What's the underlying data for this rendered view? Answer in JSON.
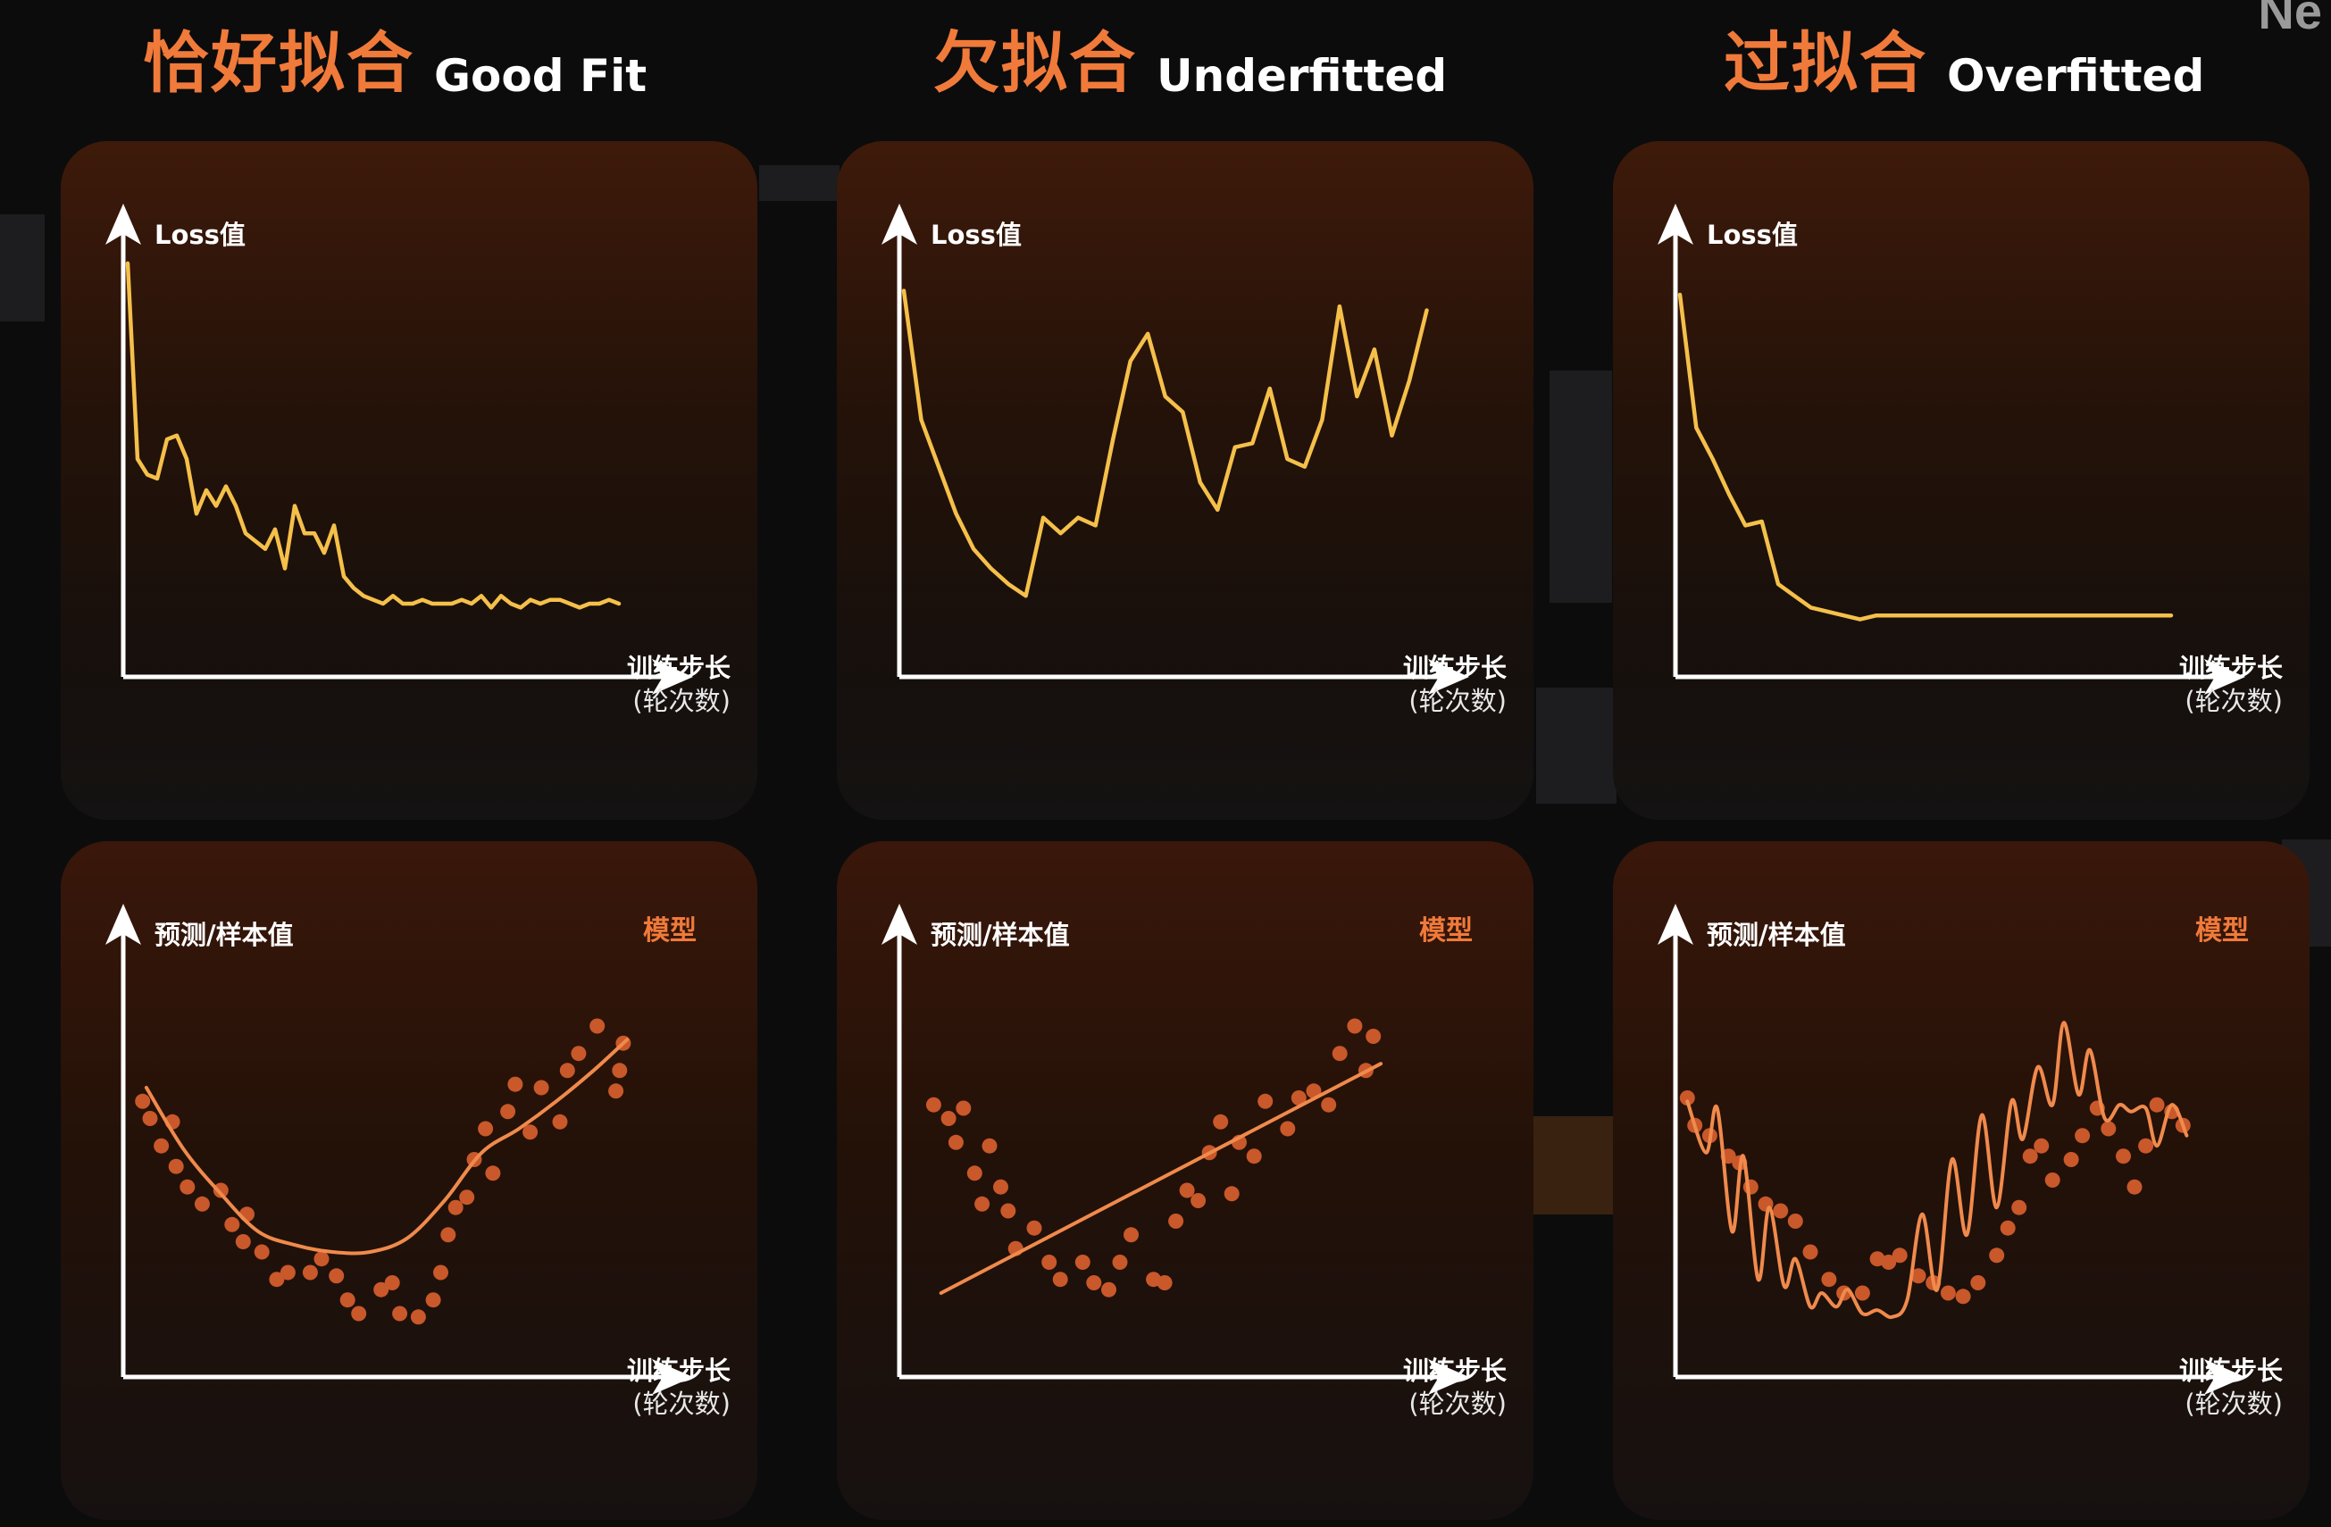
{
  "columns": [
    {
      "title_cn": "恰好拟合",
      "title_en": "Good Fit"
    },
    {
      "title_cn": "欠拟合",
      "title_en": "Underfitted"
    },
    {
      "title_cn": "过拟合",
      "title_en": "Overfitted"
    }
  ],
  "axis_labels": {
    "loss_y": "Loss值",
    "pred_y": "预测/样本值",
    "x_line1": "训练步长",
    "x_line2": "(轮次数)",
    "model": "模型"
  },
  "corner_text": "Ne",
  "colors": {
    "title_accent": "#f07a3a",
    "loss_line": "#f5c04a",
    "model_line": "#f08a4c",
    "points": "#c9582a",
    "axes": "#ffffff"
  },
  "chart_data": [
    {
      "type": "line",
      "panel": "good-fit-loss",
      "ylabel": "Loss值",
      "xlabel": "训练步长 (轮次数)",
      "x": [
        0,
        1,
        2,
        3,
        4,
        5,
        6,
        7,
        8,
        9,
        10,
        11,
        12,
        13,
        14,
        15,
        16,
        17,
        18,
        19,
        20,
        21,
        22,
        23,
        24,
        25,
        26,
        27,
        28,
        29,
        30,
        31,
        32,
        33,
        34,
        35,
        36,
        37,
        38,
        39,
        40,
        41,
        42,
        43,
        44,
        45,
        46,
        47,
        48,
        49,
        50
      ],
      "y": [
        1.0,
        0.5,
        0.46,
        0.45,
        0.55,
        0.56,
        0.5,
        0.36,
        0.42,
        0.38,
        0.43,
        0.38,
        0.31,
        0.29,
        0.27,
        0.32,
        0.22,
        0.38,
        0.31,
        0.31,
        0.26,
        0.33,
        0.2,
        0.17,
        0.15,
        0.14,
        0.13,
        0.15,
        0.13,
        0.13,
        0.14,
        0.13,
        0.13,
        0.13,
        0.14,
        0.13,
        0.15,
        0.12,
        0.15,
        0.13,
        0.12,
        0.14,
        0.13,
        0.14,
        0.14,
        0.13,
        0.12,
        0.13,
        0.13,
        0.14,
        0.13
      ],
      "xlim": [
        0,
        55
      ],
      "ylim": [
        0,
        1.05
      ]
    },
    {
      "type": "line",
      "panel": "underfitted-loss",
      "ylabel": "Loss值",
      "xlabel": "训练步长 (轮次数)",
      "x": [
        0,
        1,
        2,
        3,
        4,
        5,
        6,
        7,
        8,
        9,
        10,
        11,
        12,
        13,
        14,
        15,
        16,
        17,
        18,
        19,
        20,
        21,
        22,
        23,
        24,
        25,
        26,
        27,
        28,
        29,
        30
      ],
      "y": [
        0.93,
        0.6,
        0.48,
        0.36,
        0.27,
        0.22,
        0.18,
        0.15,
        0.35,
        0.31,
        0.35,
        0.33,
        0.55,
        0.75,
        0.82,
        0.66,
        0.62,
        0.44,
        0.37,
        0.53,
        0.54,
        0.68,
        0.5,
        0.48,
        0.6,
        0.89,
        0.66,
        0.78,
        0.56,
        0.7,
        0.88
      ],
      "xlim": [
        0,
        31
      ],
      "ylim": [
        0,
        1.05
      ]
    },
    {
      "type": "line",
      "panel": "overfitted-loss",
      "ylabel": "Loss值",
      "xlabel": "训练步长 (轮次数)",
      "x": [
        0,
        1,
        2,
        3,
        4,
        5,
        6,
        7,
        8,
        9,
        10,
        11,
        12,
        13,
        14,
        15,
        16,
        17,
        18,
        19,
        20,
        21,
        22,
        23,
        24,
        25,
        26,
        27,
        28,
        29,
        30
      ],
      "y": [
        0.92,
        0.58,
        0.5,
        0.41,
        0.33,
        0.34,
        0.18,
        0.15,
        0.12,
        0.11,
        0.1,
        0.09,
        0.1,
        0.1,
        0.1,
        0.1,
        0.1,
        0.1,
        0.1,
        0.1,
        0.1,
        0.1,
        0.1,
        0.1,
        0.1,
        0.1,
        0.1,
        0.1,
        0.1,
        0.1,
        0.1
      ],
      "xlim": [
        0,
        33
      ],
      "ylim": [
        0,
        1.05
      ]
    },
    {
      "type": "scatter",
      "panel": "good-fit-model",
      "ylabel": "预测/样本值",
      "xlabel": "训练步长 (轮次数)",
      "legend": "模型",
      "points": [
        [
          0.4,
          0.74
        ],
        [
          0.6,
          0.69
        ],
        [
          0.9,
          0.61
        ],
        [
          1.3,
          0.55
        ],
        [
          1.2,
          0.68
        ],
        [
          1.6,
          0.49
        ],
        [
          2.0,
          0.44
        ],
        [
          2.5,
          0.48
        ],
        [
          2.8,
          0.38
        ],
        [
          3.1,
          0.33
        ],
        [
          3.2,
          0.41
        ],
        [
          3.6,
          0.3
        ],
        [
          4.0,
          0.22
        ],
        [
          4.3,
          0.24
        ],
        [
          4.9,
          0.24
        ],
        [
          5.2,
          0.28
        ],
        [
          5.6,
          0.23
        ],
        [
          5.9,
          0.16
        ],
        [
          6.2,
          0.12
        ],
        [
          6.8,
          0.19
        ],
        [
          7.1,
          0.21
        ],
        [
          7.3,
          0.12
        ],
        [
          7.8,
          0.11
        ],
        [
          8.2,
          0.16
        ],
        [
          8.4,
          0.24
        ],
        [
          8.6,
          0.35
        ],
        [
          8.8,
          0.43
        ],
        [
          9.1,
          0.46
        ],
        [
          9.3,
          0.57
        ],
        [
          9.6,
          0.66
        ],
        [
          9.8,
          0.53
        ],
        [
          10.2,
          0.71
        ],
        [
          10.4,
          0.79
        ],
        [
          10.8,
          0.65
        ],
        [
          11.1,
          0.78
        ],
        [
          11.6,
          0.68
        ],
        [
          11.8,
          0.83
        ],
        [
          12.1,
          0.88
        ],
        [
          12.6,
          0.96
        ],
        [
          13.1,
          0.77
        ],
        [
          13.3,
          0.91
        ],
        [
          13.2,
          0.83
        ]
      ],
      "model_x": [
        0.5,
        1.5,
        2.5,
        3.5,
        4.5,
        5.5,
        6.5,
        7.5,
        8.5,
        9.5,
        10.5,
        11.5,
        12.5,
        13.4
      ],
      "model_y": [
        0.78,
        0.6,
        0.47,
        0.36,
        0.32,
        0.3,
        0.3,
        0.34,
        0.45,
        0.59,
        0.66,
        0.74,
        0.83,
        0.92
      ],
      "xlim": [
        0,
        14.5
      ],
      "ylim": [
        0,
        1.2
      ]
    },
    {
      "type": "scatter",
      "panel": "underfitted-model",
      "ylabel": "预测/样本值",
      "xlabel": "训练步长 (轮次数)",
      "legend": "模型",
      "points": [
        [
          0.8,
          0.73
        ],
        [
          1.2,
          0.69
        ],
        [
          1.4,
          0.62
        ],
        [
          1.6,
          0.72
        ],
        [
          1.9,
          0.53
        ],
        [
          2.1,
          0.44
        ],
        [
          2.3,
          0.61
        ],
        [
          2.6,
          0.49
        ],
        [
          2.8,
          0.42
        ],
        [
          3.0,
          0.31
        ],
        [
          3.5,
          0.37
        ],
        [
          3.9,
          0.27
        ],
        [
          4.2,
          0.22
        ],
        [
          4.8,
          0.27
        ],
        [
          5.1,
          0.21
        ],
        [
          5.5,
          0.19
        ],
        [
          5.8,
          0.27
        ],
        [
          6.1,
          0.35
        ],
        [
          6.7,
          0.22
        ],
        [
          7.0,
          0.21
        ],
        [
          7.3,
          0.39
        ],
        [
          7.6,
          0.48
        ],
        [
          7.9,
          0.45
        ],
        [
          8.2,
          0.59
        ],
        [
          8.5,
          0.68
        ],
        [
          8.8,
          0.47
        ],
        [
          9.0,
          0.62
        ],
        [
          9.4,
          0.58
        ],
        [
          9.7,
          0.74
        ],
        [
          10.3,
          0.66
        ],
        [
          10.6,
          0.75
        ],
        [
          11.0,
          0.77
        ],
        [
          11.4,
          0.73
        ],
        [
          11.7,
          0.88
        ],
        [
          12.1,
          0.96
        ],
        [
          12.4,
          0.83
        ],
        [
          12.6,
          0.93
        ]
      ],
      "model_x": [
        1.0,
        12.8
      ],
      "model_y": [
        0.18,
        0.85
      ],
      "xlim": [
        0,
        14.5
      ],
      "ylim": [
        0,
        1.2
      ]
    },
    {
      "type": "scatter",
      "panel": "overfitted-model",
      "ylabel": "预测/样本值",
      "xlabel": "训练步长 (轮次数)",
      "legend": "模型",
      "points": [
        [
          0.2,
          0.75
        ],
        [
          0.4,
          0.67
        ],
        [
          0.8,
          0.64
        ],
        [
          1.3,
          0.58
        ],
        [
          1.6,
          0.56
        ],
        [
          1.9,
          0.49
        ],
        [
          2.3,
          0.44
        ],
        [
          2.7,
          0.42
        ],
        [
          3.1,
          0.39
        ],
        [
          3.5,
          0.3
        ],
        [
          4.0,
          0.22
        ],
        [
          4.4,
          0.18
        ],
        [
          4.9,
          0.18
        ],
        [
          5.3,
          0.28
        ],
        [
          5.6,
          0.27
        ],
        [
          5.9,
          0.29
        ],
        [
          6.4,
          0.23
        ],
        [
          6.8,
          0.21
        ],
        [
          7.2,
          0.18
        ],
        [
          7.6,
          0.17
        ],
        [
          8.0,
          0.21
        ],
        [
          8.5,
          0.29
        ],
        [
          8.8,
          0.37
        ],
        [
          9.1,
          0.43
        ],
        [
          9.4,
          0.58
        ],
        [
          9.7,
          0.61
        ],
        [
          10.0,
          0.51
        ],
        [
          10.5,
          0.57
        ],
        [
          10.8,
          0.64
        ],
        [
          11.2,
          0.72
        ],
        [
          11.5,
          0.66
        ],
        [
          11.9,
          0.58
        ],
        [
          12.2,
          0.49
        ],
        [
          12.5,
          0.61
        ],
        [
          12.8,
          0.73
        ],
        [
          13.2,
          0.71
        ],
        [
          13.5,
          0.67
        ]
      ],
      "model_x": [
        0.2,
        0.7,
        1.0,
        1.4,
        1.7,
        2.1,
        2.4,
        2.8,
        3.1,
        3.5,
        3.8,
        4.2,
        4.5,
        4.9,
        5.3,
        5.7,
        6.1,
        6.5,
        6.9,
        7.3,
        7.7,
        8.1,
        8.5,
        8.9,
        9.2,
        9.6,
        10.0,
        10.3,
        10.7,
        11.0,
        11.4,
        11.8,
        12.1,
        12.5,
        12.8,
        13.2,
        13.6
      ],
      "model_y": [
        0.74,
        0.59,
        0.72,
        0.36,
        0.58,
        0.22,
        0.43,
        0.2,
        0.28,
        0.14,
        0.18,
        0.14,
        0.19,
        0.12,
        0.13,
        0.11,
        0.16,
        0.41,
        0.19,
        0.57,
        0.35,
        0.7,
        0.43,
        0.74,
        0.63,
        0.84,
        0.73,
        0.97,
        0.76,
        0.89,
        0.69,
        0.73,
        0.71,
        0.72,
        0.61,
        0.73,
        0.64
      ],
      "xlim": [
        0,
        14.5
      ],
      "ylim": [
        0,
        1.2
      ]
    }
  ]
}
